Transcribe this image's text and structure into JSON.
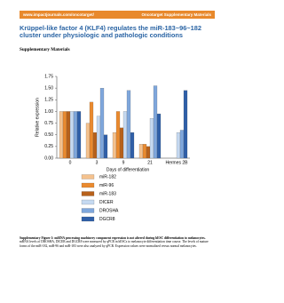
{
  "header": {
    "url": "www.impactjournals.com/oncotarget/",
    "journal": "Oncotarget Supplementary Materials"
  },
  "title": "Krüppel-like factor 4 (KLF4) regulates the miR-183~96~182 cluster under physiologic and pathologic conditions",
  "section": "Supplementary Materials",
  "chart_data": {
    "type": "bar",
    "categories": [
      "0",
      "3",
      "9",
      "21",
      "Hermes 2B"
    ],
    "series": [
      {
        "name": "miR-182",
        "color": "#f5c28e",
        "values": [
          1.0,
          0.75,
          0.55,
          0.3,
          0
        ]
      },
      {
        "name": "miR-96",
        "color": "#ea8a2e",
        "values": [
          1.0,
          1.2,
          1.0,
          0.3,
          0
        ]
      },
      {
        "name": "miR-183",
        "color": "#b8611a",
        "values": [
          1.0,
          0.55,
          0.65,
          0.25,
          0
        ]
      },
      {
        "name": "DICER",
        "color": "#c5d9f1",
        "values": [
          1.0,
          0.9,
          1.0,
          0.85,
          0.55
        ]
      },
      {
        "name": "DROSHA",
        "color": "#7fa7dc",
        "values": [
          1.0,
          1.5,
          1.45,
          1.55,
          0.6
        ]
      },
      {
        "name": "DGCR8",
        "color": "#2f5fa8",
        "values": [
          1.0,
          0.5,
          0.55,
          0.95,
          1.45
        ]
      }
    ],
    "ylim": [
      0,
      1.75
    ],
    "yticks": [
      {
        "value": 0,
        "label": "0.00"
      },
      0.25,
      {
        "value": 0.5,
        "label": "0.50"
      },
      0.75,
      {
        "value": 1,
        "label": "1.00"
      },
      1.25,
      {
        "value": 1.5,
        "label": "1.50"
      },
      1.75
    ],
    "ylabel": "Relative expression",
    "xlabel": "Days of differentiation"
  },
  "caption": {
    "label": "Supplementary Figure 1: miRNA processing machinery component expression is not altered during hESC differentiation to melanocytes.",
    "text": "mRNA levels of DROSHA, DICER and DGCR8 were measured by qPCR in hESCs to melanocyte differentiation time course. The levels of mature forms of the miR-182, miR-96 and miR-183 were also analyzed by qPCR. Expression values were normalized versus normal melanocytes."
  }
}
